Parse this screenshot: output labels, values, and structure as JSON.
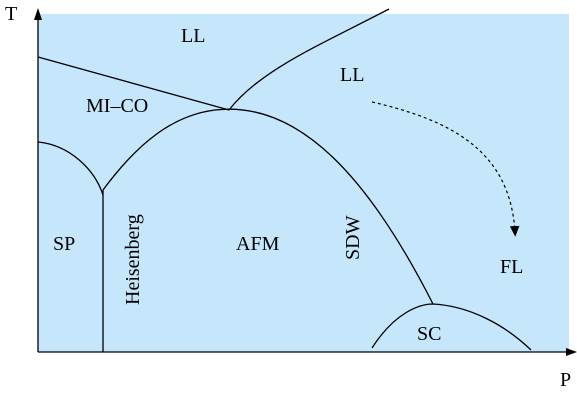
{
  "axes": {
    "x_label": "P",
    "y_label": "T"
  },
  "phases": {
    "ll_upper": "LL",
    "ll_right": "LL",
    "mi_co": "MI–CO",
    "sp": "SP",
    "heisenberg": "Heisenberg",
    "afm": "AFM",
    "sdw": "SDW",
    "fl": "FL",
    "sc": "SC"
  },
  "colors": {
    "background": "#c6e6fb",
    "lines": "#000000"
  }
}
